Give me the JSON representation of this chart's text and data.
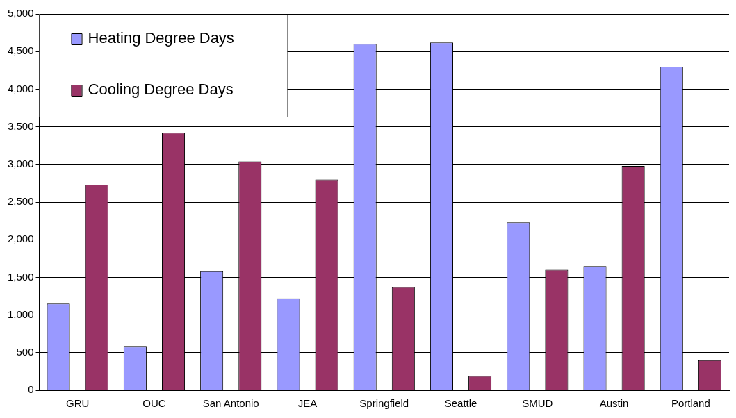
{
  "chart_data": {
    "type": "bar",
    "categories": [
      "GRU",
      "OUC",
      "San Antonio",
      "JEA",
      "Springfield",
      "Seattle",
      "SMUD",
      "Austin",
      "Portland"
    ],
    "series": [
      {
        "name": "Heating Degree Days",
        "color": "#9999ff",
        "values": [
          1150,
          580,
          1580,
          1220,
          4600,
          4620,
          2230,
          1650,
          4300
        ]
      },
      {
        "name": "Cooling Degree Days",
        "color": "#993366",
        "values": [
          2730,
          3420,
          3040,
          2800,
          1370,
          190,
          1600,
          2980,
          400
        ]
      }
    ],
    "ylim": [
      0,
      5000
    ],
    "yticks": [
      {
        "value": 0,
        "label": "0"
      },
      {
        "value": 500,
        "label": "500"
      },
      {
        "value": 1000,
        "label": "1,000"
      },
      {
        "value": 1500,
        "label": "1,500"
      },
      {
        "value": 2000,
        "label": "2,000"
      },
      {
        "value": 2500,
        "label": "2,500"
      },
      {
        "value": 3000,
        "label": "3,000"
      },
      {
        "value": 3500,
        "label": "3,500"
      },
      {
        "value": 4000,
        "label": "4,000"
      },
      {
        "value": 4500,
        "label": "4,500"
      },
      {
        "value": 5000,
        "label": "5,000"
      }
    ],
    "grid": "y",
    "legend": "top left"
  }
}
